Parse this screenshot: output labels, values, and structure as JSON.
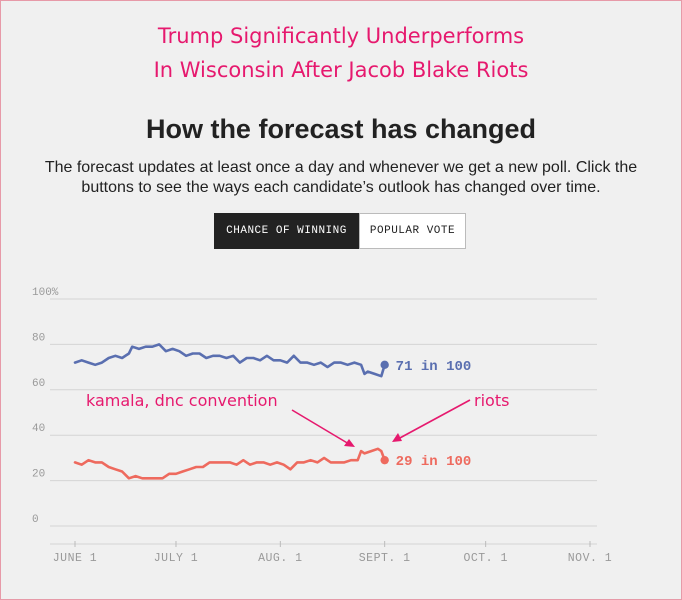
{
  "annotation": {
    "title_line1": "Trump Significantly Underperforms",
    "title_line2": "In Wisconsin After Jacob Blake Riots",
    "note_convention": "kamala, dnc convention",
    "note_riots": "riots",
    "color": "#e6196e"
  },
  "header": {
    "title": "How the forecast has changed",
    "description": "The forecast updates at least once a day and whenever we get a new poll. Click the buttons to see the ways each candidate’s outlook has changed over time."
  },
  "buttons": {
    "chance": "CHANCE OF WINNING",
    "popular": "POPULAR VOTE",
    "selected": "chance"
  },
  "chart_data": {
    "type": "line",
    "title": "",
    "xlabel": "",
    "ylabel": "",
    "ylim": [
      0,
      100
    ],
    "y_ticks": [
      "100%",
      "80",
      "60",
      "40",
      "20",
      "0"
    ],
    "y_tick_values": [
      100,
      80,
      60,
      40,
      20,
      0
    ],
    "x_tick_labels": [
      "JUNE 1",
      "JULY 1",
      "AUG. 1",
      "SEPT. 1",
      "OCT. 1",
      "NOV. 1"
    ],
    "x_tick_dates": [
      "2020-06-01",
      "2020-07-01",
      "2020-08-01",
      "2020-09-01",
      "2020-10-01",
      "2020-11-01"
    ],
    "grid": true,
    "series": [
      {
        "color": "#5a6fb0",
        "end_label": "71 in 100",
        "points": [
          [
            "2020-06-01",
            72
          ],
          [
            "2020-06-03",
            73
          ],
          [
            "2020-06-05",
            72
          ],
          [
            "2020-06-07",
            71
          ],
          [
            "2020-06-09",
            72
          ],
          [
            "2020-06-11",
            74
          ],
          [
            "2020-06-13",
            75
          ],
          [
            "2020-06-15",
            74
          ],
          [
            "2020-06-17",
            76
          ],
          [
            "2020-06-18",
            79
          ],
          [
            "2020-06-20",
            78
          ],
          [
            "2020-06-22",
            79
          ],
          [
            "2020-06-24",
            79
          ],
          [
            "2020-06-26",
            80
          ],
          [
            "2020-06-28",
            77
          ],
          [
            "2020-06-30",
            78
          ],
          [
            "2020-07-02",
            77
          ],
          [
            "2020-07-04",
            75
          ],
          [
            "2020-07-06",
            76
          ],
          [
            "2020-07-08",
            76
          ],
          [
            "2020-07-10",
            74
          ],
          [
            "2020-07-12",
            75
          ],
          [
            "2020-07-14",
            75
          ],
          [
            "2020-07-16",
            74
          ],
          [
            "2020-07-18",
            75
          ],
          [
            "2020-07-20",
            72
          ],
          [
            "2020-07-22",
            74
          ],
          [
            "2020-07-24",
            74
          ],
          [
            "2020-07-26",
            73
          ],
          [
            "2020-07-28",
            75
          ],
          [
            "2020-07-30",
            73
          ],
          [
            "2020-08-01",
            73
          ],
          [
            "2020-08-03",
            72
          ],
          [
            "2020-08-05",
            75
          ],
          [
            "2020-08-07",
            72
          ],
          [
            "2020-08-09",
            72
          ],
          [
            "2020-08-11",
            71
          ],
          [
            "2020-08-13",
            72
          ],
          [
            "2020-08-15",
            70
          ],
          [
            "2020-08-17",
            72
          ],
          [
            "2020-08-19",
            72
          ],
          [
            "2020-08-21",
            71
          ],
          [
            "2020-08-23",
            72
          ],
          [
            "2020-08-25",
            71
          ],
          [
            "2020-08-26",
            67
          ],
          [
            "2020-08-27",
            68
          ],
          [
            "2020-08-29",
            67
          ],
          [
            "2020-08-31",
            66
          ],
          [
            "2020-09-01",
            71
          ]
        ]
      },
      {
        "color": "#ee6a5e",
        "end_label": "29 in 100",
        "points": [
          [
            "2020-06-01",
            28
          ],
          [
            "2020-06-03",
            27
          ],
          [
            "2020-06-05",
            29
          ],
          [
            "2020-06-07",
            28
          ],
          [
            "2020-06-09",
            28
          ],
          [
            "2020-06-11",
            26
          ],
          [
            "2020-06-13",
            25
          ],
          [
            "2020-06-15",
            24
          ],
          [
            "2020-06-17",
            21
          ],
          [
            "2020-06-19",
            22
          ],
          [
            "2020-06-21",
            21
          ],
          [
            "2020-06-23",
            21
          ],
          [
            "2020-06-25",
            21
          ],
          [
            "2020-06-27",
            21
          ],
          [
            "2020-06-29",
            23
          ],
          [
            "2020-07-01",
            23
          ],
          [
            "2020-07-03",
            24
          ],
          [
            "2020-07-05",
            25
          ],
          [
            "2020-07-07",
            26
          ],
          [
            "2020-07-09",
            26
          ],
          [
            "2020-07-11",
            28
          ],
          [
            "2020-07-13",
            28
          ],
          [
            "2020-07-15",
            28
          ],
          [
            "2020-07-17",
            28
          ],
          [
            "2020-07-19",
            27
          ],
          [
            "2020-07-21",
            29
          ],
          [
            "2020-07-23",
            27
          ],
          [
            "2020-07-25",
            28
          ],
          [
            "2020-07-27",
            28
          ],
          [
            "2020-07-29",
            27
          ],
          [
            "2020-07-31",
            28
          ],
          [
            "2020-08-02",
            27
          ],
          [
            "2020-08-04",
            25
          ],
          [
            "2020-08-06",
            28
          ],
          [
            "2020-08-08",
            28
          ],
          [
            "2020-08-10",
            29
          ],
          [
            "2020-08-12",
            28
          ],
          [
            "2020-08-14",
            30
          ],
          [
            "2020-08-16",
            28
          ],
          [
            "2020-08-18",
            28
          ],
          [
            "2020-08-20",
            28
          ],
          [
            "2020-08-22",
            29
          ],
          [
            "2020-08-24",
            29
          ],
          [
            "2020-08-25",
            33
          ],
          [
            "2020-08-26",
            32
          ],
          [
            "2020-08-28",
            33
          ],
          [
            "2020-08-30",
            34
          ],
          [
            "2020-08-31",
            33
          ],
          [
            "2020-09-01",
            29
          ]
        ]
      }
    ]
  }
}
